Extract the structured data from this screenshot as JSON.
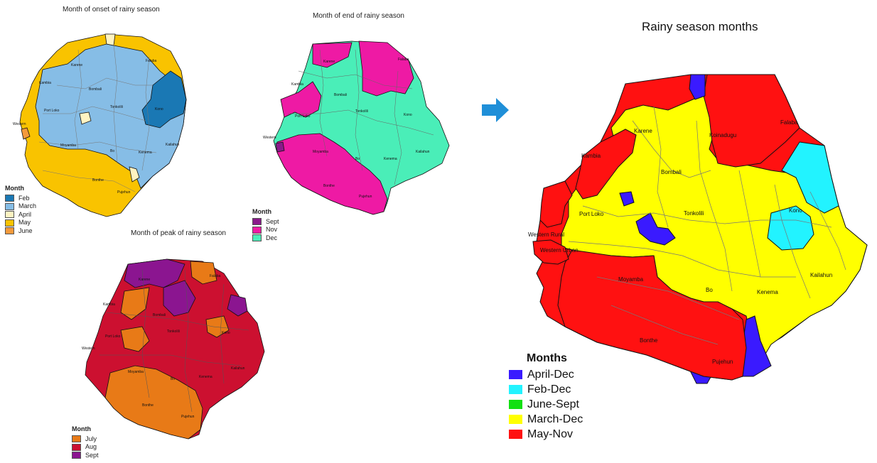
{
  "maps": {
    "onset": {
      "title": "Month of onset of rainy season",
      "legend_title": "Month",
      "legend": [
        {
          "label": "Feb",
          "color": "#1a78b4"
        },
        {
          "label": "March",
          "color": "#86bde6"
        },
        {
          "label": "April",
          "color": "#fff3c2"
        },
        {
          "label": "May",
          "color": "#f9c300"
        },
        {
          "label": "June",
          "color": "#f49a3c"
        }
      ],
      "place_labels": [
        "Falaba",
        "Karene",
        "Kambia",
        "Bombali",
        "Kono",
        "Port Loko",
        "Tonkolili",
        "Western",
        "Moyamba",
        "Bo",
        "Kenema",
        "Kailahun",
        "Bonthe",
        "Pujehun"
      ]
    },
    "end": {
      "title": "Month of end of rainy season",
      "legend_title": "Month",
      "legend": [
        {
          "label": "Sept",
          "color": "#8b1a8b"
        },
        {
          "label": "Nov",
          "color": "#ee1aa4"
        },
        {
          "label": "Dec",
          "color": "#4aeeb8"
        }
      ],
      "place_labels": [
        "Falaba",
        "Karene",
        "Kambia",
        "Bombali",
        "Kono",
        "Port Loko",
        "Tonkolili",
        "Western",
        "Moyamba",
        "Bo",
        "Kenema",
        "Kailahun",
        "Bonthe",
        "Pujehun"
      ]
    },
    "peak": {
      "title": "Month of peak of rainy season",
      "legend_title": "Month",
      "legend": [
        {
          "label": "July",
          "color": "#e87a17"
        },
        {
          "label": "Aug",
          "color": "#cc1030"
        },
        {
          "label": "Sept",
          "color": "#8b1590"
        }
      ],
      "place_labels": [
        "Falaba",
        "Karene",
        "Kambia",
        "Bombali",
        "Kono",
        "Port Loko",
        "Tonkolili",
        "Western",
        "Moyamba",
        "Bo",
        "Kenema",
        "Kailahun",
        "Bonthe",
        "Pujehun"
      ]
    },
    "combined": {
      "title": "Rainy season months",
      "legend_title": "Months",
      "legend": [
        {
          "label": "April-Dec",
          "color": "#3a1aff"
        },
        {
          "label": "Feb-Dec",
          "color": "#22f3ff"
        },
        {
          "label": "June-Sept",
          "color": "#11e011"
        },
        {
          "label": "March-Dec",
          "color": "#ffff00"
        },
        {
          "label": "May-Nov",
          "color": "#ff1111"
        }
      ],
      "place_labels": [
        "Falaba",
        "Karene",
        "Koinadugu",
        "Kambia",
        "Bombali",
        "Port Loko",
        "Tonkolili",
        "Kono",
        "Western Rural",
        "Western Urban",
        "Moyamba",
        "Bo",
        "Kenema",
        "Kailahun",
        "Bonthe",
        "Pujehun"
      ]
    }
  },
  "colors": {
    "arrow": "#1f8fd8",
    "border": "#111111",
    "inner_border": "#888888"
  }
}
